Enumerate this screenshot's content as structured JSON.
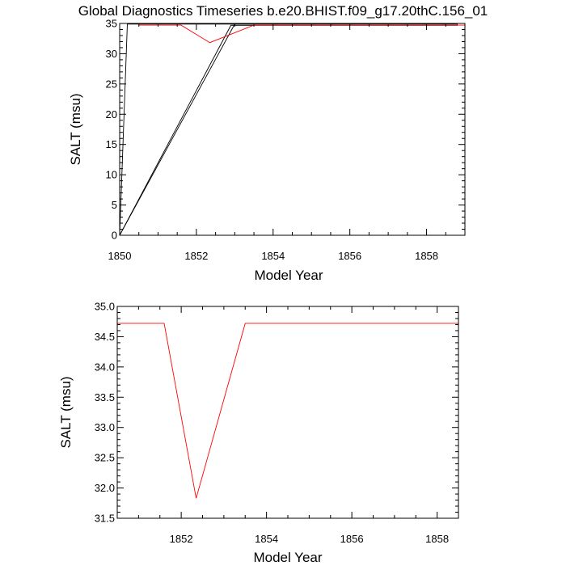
{
  "figure": {
    "title": "Global Diagnostics Timeseries b.e20.BHIST.f09_g17.20thC.156_01"
  },
  "chart_data": [
    {
      "type": "line",
      "xlabel": "Model Year",
      "ylabel": "SALT (msu)",
      "xlim": [
        1850,
        1859
      ],
      "ylim": [
        0,
        35
      ],
      "xticks": [
        1850,
        1852,
        1854,
        1856,
        1858
      ],
      "xtick_labels": [
        "1850",
        "1852",
        "1854",
        "1856",
        "1858"
      ],
      "yticks": [
        0,
        5,
        10,
        15,
        20,
        25,
        30,
        35
      ],
      "ytick_labels": [
        "0",
        "5",
        "10",
        "15",
        "20",
        "25",
        "30",
        "35"
      ],
      "x_minor_step": 0.5,
      "y_minor_step": 1,
      "grid": false,
      "series": [
        {
          "color": "#000000",
          "x": [
            1850.0,
            1852.9,
            1858.8,
            1858.8,
            1850.2,
            1850.0
          ],
          "y": [
            0.0,
            34.7,
            34.7,
            34.9,
            34.9,
            0.0
          ]
        },
        {
          "color": "#000000",
          "x": [
            1850.0,
            1853.0
          ],
          "y": [
            0.0,
            34.9
          ]
        },
        {
          "color": "#ff0000",
          "x": [
            1850.5,
            1851.6,
            1852.35,
            1853.5,
            1859.0
          ],
          "y": [
            34.72,
            34.72,
            31.83,
            34.72,
            34.72
          ]
        }
      ]
    },
    {
      "type": "line",
      "xlabel": "Model Year",
      "ylabel": "SALT (msu)",
      "xlim": [
        1850.5,
        1858.5
      ],
      "ylim": [
        31.5,
        35.0
      ],
      "xticks": [
        1852,
        1854,
        1856,
        1858
      ],
      "xtick_labels": [
        "1852",
        "1854",
        "1856",
        "1858"
      ],
      "yticks": [
        31.5,
        32.0,
        32.5,
        33.0,
        33.5,
        34.0,
        34.5,
        35.0
      ],
      "ytick_labels": [
        "31.5",
        "32.0",
        "32.5",
        "33.0",
        "33.5",
        "34.0",
        "34.5",
        "35.0"
      ],
      "x_minor_step": 0.5,
      "y_minor_step": 0.1,
      "grid": false,
      "series": [
        {
          "color": "#ff0000",
          "x": [
            1850.5,
            1851.6,
            1852.35,
            1853.5,
            1858.5
          ],
          "y": [
            34.72,
            34.72,
            31.83,
            34.72,
            34.72
          ]
        }
      ]
    }
  ]
}
